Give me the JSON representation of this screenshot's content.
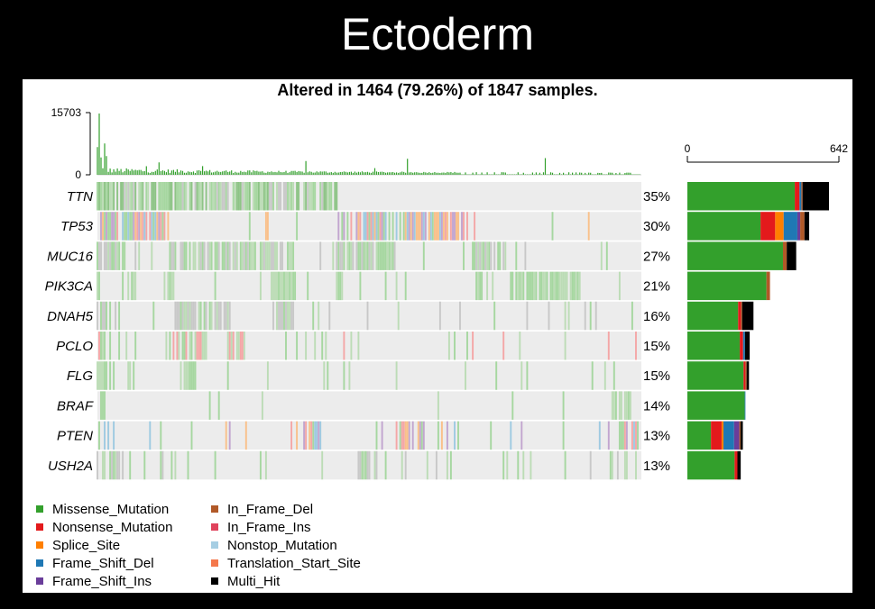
{
  "slide_title": "Ectoderm",
  "chart_data": {
    "type": "heatmap",
    "title": "Altered in 1464 (79.26%) of 1847 samples.",
    "samples_total": 1847,
    "samples_altered": 1464,
    "tmb_axis": {
      "ticks": [
        0,
        15703
      ]
    },
    "gene_bar_axis": {
      "ticks": [
        0,
        642
      ]
    },
    "genes": [
      {
        "name": "TTN",
        "pct": "35%",
        "counts": {
          "Missense_Mutation": 455,
          "Nonsense_Mutation": 20,
          "Frame_Shift_Del": 8,
          "In_Frame_Del": 5,
          "Multi_Hit": 112
        }
      },
      {
        "name": "TP53",
        "pct": "30%",
        "counts": {
          "Missense_Mutation": 310,
          "Nonsense_Mutation": 62,
          "Splice_Site": 36,
          "Frame_Shift_Del": 58,
          "Frame_Shift_Ins": 12,
          "In_Frame_Del": 18,
          "Multi_Hit": 20
        }
      },
      {
        "name": "MUC16",
        "pct": "27%",
        "counts": {
          "Missense_Mutation": 405,
          "In_Frame_Del": 16,
          "Multi_Hit": 40
        }
      },
      {
        "name": "PIK3CA",
        "pct": "21%",
        "counts": {
          "Missense_Mutation": 335,
          "In_Frame_Del": 15,
          "Multi_Hit": 0
        }
      },
      {
        "name": "DNAH5",
        "pct": "16%",
        "counts": {
          "Missense_Mutation": 215,
          "Nonsense_Mutation": 12,
          "In_Frame_Del": 5,
          "Multi_Hit": 48
        }
      },
      {
        "name": "PCLO",
        "pct": "15%",
        "counts": {
          "Missense_Mutation": 222,
          "Nonsense_Mutation": 14,
          "Frame_Shift_Del": 8,
          "Multi_Hit": 20
        }
      },
      {
        "name": "FLG",
        "pct": "15%",
        "counts": {
          "Missense_Mutation": 238,
          "Nonsense_Mutation": 8,
          "In_Frame_Del": 5,
          "Multi_Hit": 10
        }
      },
      {
        "name": "BRAF",
        "pct": "14%",
        "counts": {
          "Missense_Mutation": 243,
          "Frame_Shift_Del": 3,
          "Multi_Hit": 0
        }
      },
      {
        "name": "PTEN",
        "pct": "13%",
        "counts": {
          "Missense_Mutation": 100,
          "Nonsense_Mutation": 45,
          "Splice_Site": 8,
          "Frame_Shift_Del": 45,
          "Frame_Shift_Ins": 22,
          "In_Frame_Del": 5,
          "Multi_Hit": 10
        }
      },
      {
        "name": "USH2A",
        "pct": "13%",
        "counts": {
          "Missense_Mutation": 200,
          "Nonsense_Mutation": 12,
          "Multi_Hit": 14
        }
      }
    ],
    "legend": [
      {
        "label": "Missense_Mutation",
        "color": "#33a02c"
      },
      {
        "label": "Nonsense_Mutation",
        "color": "#e31a1c"
      },
      {
        "label": "Splice_Site",
        "color": "#ff7f00"
      },
      {
        "label": "Frame_Shift_Del",
        "color": "#1f78b4"
      },
      {
        "label": "Frame_Shift_Ins",
        "color": "#6a3d9a"
      },
      {
        "label": "In_Frame_Del",
        "color": "#b15928"
      },
      {
        "label": "In_Frame_Ins",
        "color": "#e0435c"
      },
      {
        "label": "Nonstop_Mutation",
        "color": "#a6cee3"
      },
      {
        "label": "Translation_Start_Site",
        "color": "#f4784c"
      },
      {
        "label": "Multi_Hit",
        "color": "#000000"
      }
    ],
    "background_cell_color": "#ececec"
  }
}
